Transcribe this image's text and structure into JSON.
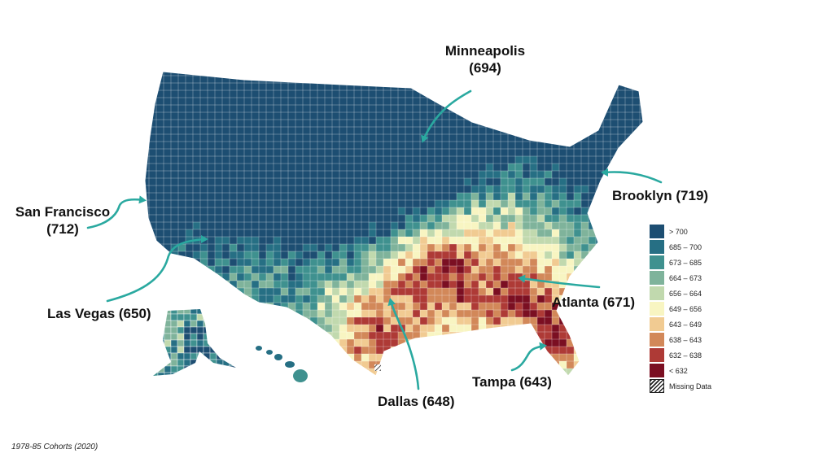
{
  "cities": [
    {
      "id": "minneapolis",
      "name": "Minneapolis",
      "value": "(694)"
    },
    {
      "id": "brooklyn",
      "name": "Brooklyn (719)",
      "value": ""
    },
    {
      "id": "san-francisco",
      "name": "San Francisco",
      "value": "(712)"
    },
    {
      "id": "las-vegas",
      "name": "Las Vegas (650)",
      "value": ""
    },
    {
      "id": "atlanta",
      "name": "Atlanta (671)",
      "value": ""
    },
    {
      "id": "tampa",
      "name": "Tampa (643)",
      "value": ""
    },
    {
      "id": "dallas",
      "name": "Dallas (648)",
      "value": ""
    }
  ],
  "legend": [
    {
      "label": "> 700",
      "color": "#1d4e72"
    },
    {
      "label": "685 – 700",
      "color": "#266f84"
    },
    {
      "label": "673 – 685",
      "color": "#3f918f"
    },
    {
      "label": "664 – 673",
      "color": "#7fb39b"
    },
    {
      "label": "656 – 664",
      "color": "#c1d9ae"
    },
    {
      "label": "649 – 656",
      "color": "#f8f5c2"
    },
    {
      "label": "643 – 649",
      "color": "#f1cb92"
    },
    {
      "label": "638 – 643",
      "color": "#d28859"
    },
    {
      "label": "632 – 638",
      "color": "#ae3a36"
    },
    {
      "label": "< 632",
      "color": "#7b0f22"
    },
    {
      "label": "Missing Data",
      "color": "hatch"
    }
  ],
  "arrow_color": "#2aa9a0",
  "footnote": "1978-85 Cohorts (2020)"
}
